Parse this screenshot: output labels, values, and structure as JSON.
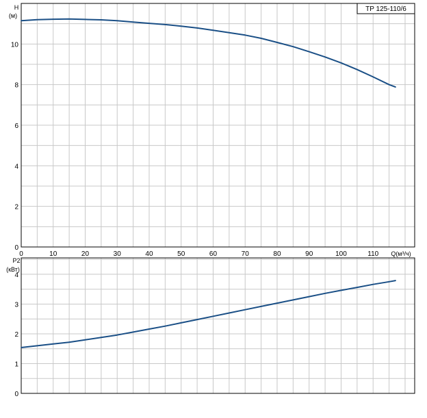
{
  "colors": {
    "curve": "#1a4f86",
    "grid": "#c8c8c8",
    "frame": "#000000",
    "background": "#ffffff"
  },
  "chart_data": [
    {
      "type": "line",
      "title": "TP 125-110/6",
      "ylabel_line1": "H",
      "ylabel_line2": "(м)",
      "xlabel": "Q(м³/ч)",
      "xlim": [
        0,
        123
      ],
      "ylim": [
        0,
        12
      ],
      "x_ticks": [
        0,
        10,
        20,
        30,
        40,
        50,
        60,
        70,
        80,
        90,
        100,
        110
      ],
      "y_ticks": [
        0,
        2,
        4,
        6,
        8,
        10
      ],
      "grid": true,
      "series": [
        {
          "x": [
            0,
            5,
            10,
            15,
            20,
            25,
            30,
            35,
            40,
            45,
            50,
            55,
            60,
            65,
            70,
            75,
            80,
            85,
            90,
            95,
            100,
            105,
            110,
            115,
            117
          ],
          "y": [
            11.15,
            11.2,
            11.22,
            11.23,
            11.21,
            11.19,
            11.15,
            11.08,
            11.02,
            10.96,
            10.88,
            10.79,
            10.68,
            10.56,
            10.44,
            10.28,
            10.08,
            9.87,
            9.62,
            9.36,
            9.07,
            8.74,
            8.38,
            8.0,
            7.88
          ]
        }
      ]
    },
    {
      "type": "line",
      "title": "",
      "ylabel_line1": "P2",
      "ylabel_line2": "(кВт)",
      "xlabel": "",
      "xlim": [
        0,
        123
      ],
      "ylim": [
        0,
        4.55
      ],
      "x_ticks": [
        0,
        10,
        20,
        30,
        40,
        50,
        60,
        70,
        80,
        90,
        100,
        110
      ],
      "y_ticks": [
        0,
        1,
        2,
        3,
        4
      ],
      "grid": true,
      "series": [
        {
          "x": [
            0,
            5,
            10,
            15,
            20,
            25,
            30,
            35,
            40,
            45,
            50,
            55,
            60,
            65,
            70,
            75,
            80,
            85,
            90,
            95,
            100,
            105,
            110,
            115,
            117
          ],
          "y": [
            1.54,
            1.6,
            1.66,
            1.72,
            1.8,
            1.88,
            1.96,
            2.06,
            2.16,
            2.26,
            2.37,
            2.48,
            2.59,
            2.7,
            2.81,
            2.92,
            3.03,
            3.14,
            3.25,
            3.36,
            3.46,
            3.56,
            3.66,
            3.75,
            3.79
          ]
        }
      ]
    }
  ]
}
